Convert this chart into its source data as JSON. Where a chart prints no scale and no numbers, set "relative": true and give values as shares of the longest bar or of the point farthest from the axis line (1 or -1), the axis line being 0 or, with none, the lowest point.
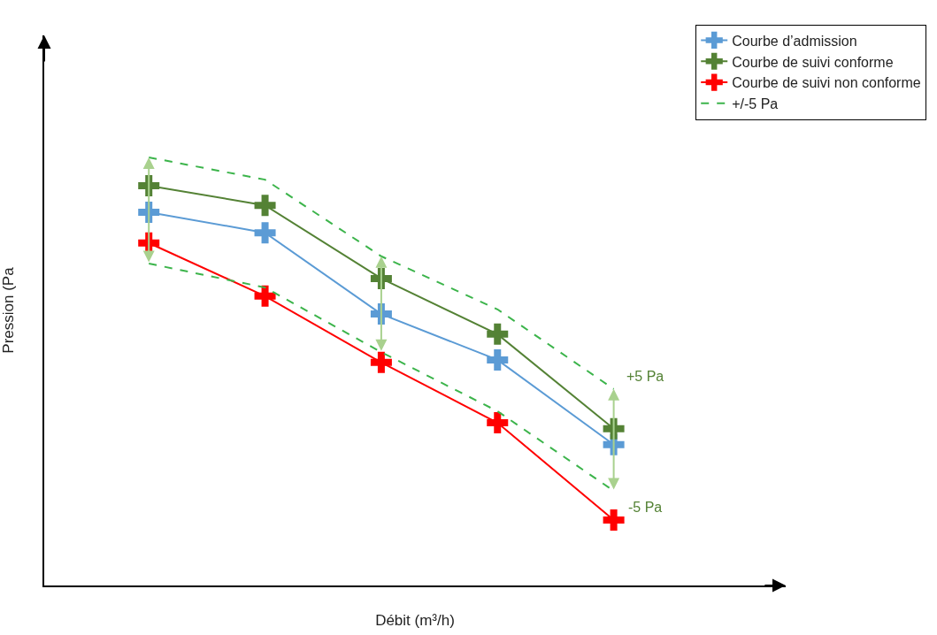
{
  "chart_data": {
    "type": "line",
    "relative": true,
    "xlabel": "Débit (m³/h)",
    "ylabel": "Pression (Pa",
    "grid": false,
    "tick_labels": false,
    "legend": "top right",
    "marker": "cross",
    "categories": [
      null,
      null,
      null,
      null,
      null
    ],
    "series": [
      {
        "name": "Courbe d’admission",
        "color": "#5b9bd5",
        "line_style": "solid",
        "values": [
          0.872,
          0.824,
          0.634,
          0.527,
          0.329
        ]
      },
      {
        "name": "Courbe de suivi conforme",
        "color": "#548235",
        "line_style": "solid",
        "values": [
          0.934,
          0.888,
          0.717,
          0.587,
          0.366
        ]
      },
      {
        "name": "Courbe de suivi non conforme",
        "color": "#ff0000",
        "line_style": "solid",
        "values": [
          0.8,
          0.676,
          0.521,
          0.38,
          0.153
        ]
      },
      {
        "name": "+/-5 Pa",
        "color": "#3cb44b",
        "marker": "none",
        "line_style": "dashed",
        "values": [
          1,
          0.948,
          0.769,
          0.645,
          0.459
        ]
      },
      {
        "color": "#3cb44b",
        "marker": "none",
        "line_style": "dashed",
        "values": [
          0.752,
          0.696,
          0.545,
          0.407,
          0.221
        ]
      }
    ],
    "annotations": [
      "+5 Pa",
      "-5 Pa"
    ]
  }
}
